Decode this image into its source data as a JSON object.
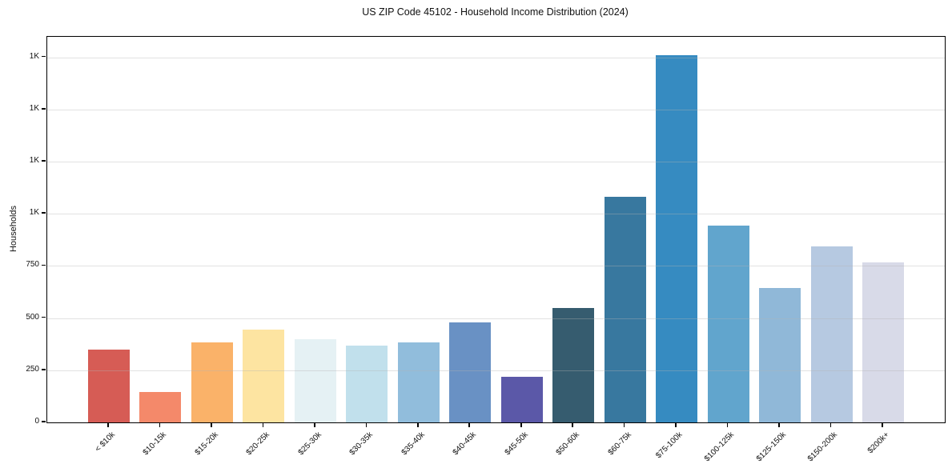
{
  "chart_data": {
    "type": "bar",
    "title": "US ZIP Code 45102 - Household Income Distribution (2024)",
    "xlabel": "",
    "ylabel": "Households",
    "categories": [
      "< $10k",
      "$10-15k",
      "$15-20k",
      "$20-25k",
      "$25-30k",
      "$30-35k",
      "$35-40k",
      "$40-45k",
      "$45-50k",
      "$50-60k",
      "$60-75k",
      "$75-100k",
      "$100-125k",
      "$125-150k",
      "$150-200k",
      "$200k+"
    ],
    "values": [
      350,
      145,
      385,
      445,
      400,
      370,
      385,
      480,
      220,
      550,
      1080,
      1760,
      945,
      645,
      845,
      765
    ],
    "bar_colors": [
      "#d65c55",
      "#f4896a",
      "#fab269",
      "#fde4a1",
      "#e5f1f4",
      "#c1e0ec",
      "#91bddc",
      "#6991c4",
      "#5b58a8",
      "#365c6f",
      "#38789f",
      "#368bc1",
      "#61a5cd",
      "#90b8d8",
      "#b6c9e1",
      "#d8dae8"
    ],
    "ylim": [
      0,
      1848
    ],
    "yticks": [
      {
        "value": 0,
        "label": "0"
      },
      {
        "value": 250,
        "label": "250"
      },
      {
        "value": 500,
        "label": "500"
      },
      {
        "value": 750,
        "label": "750"
      },
      {
        "value": 1000,
        "label": "1K"
      },
      {
        "value": 1250,
        "label": "1K"
      },
      {
        "value": 1500,
        "label": "1K"
      },
      {
        "value": 1750,
        "label": "1K"
      }
    ],
    "grid": true,
    "grid_color": "#e8e8e8",
    "spine_color": "#000000",
    "legend_position": "none",
    "x_tick_rotation_deg": 45
  }
}
